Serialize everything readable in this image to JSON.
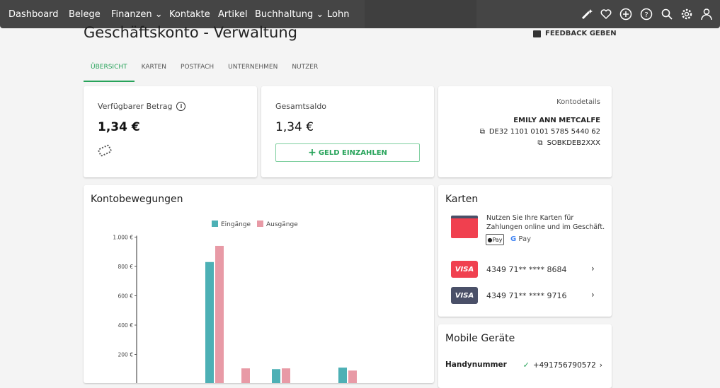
{
  "nav": {
    "items": [
      "Dashboard",
      "Belege",
      "Finanzen",
      "Kontakte",
      "Artikel",
      "Buchhaltung",
      "Lohn"
    ],
    "icons": [
      "magic-wand-icon",
      "heart-icon",
      "plus-circle-icon",
      "help-icon",
      "search-icon",
      "gear-icon",
      "user-icon"
    ]
  },
  "page": {
    "title": "Geschäftskonto - Verwaltung",
    "feedback": "FEEDBACK GEBEN"
  },
  "tabs": [
    "ÜBERSICHT",
    "KARTEN",
    "POSTFACH",
    "UNTERNEHMEN",
    "NUTZER"
  ],
  "available": {
    "label": "Verfügbarer Betrag",
    "amount": "1,34 €"
  },
  "balance": {
    "label": "Gesamtsaldo",
    "amount": "1,34 €",
    "button": "GELD EINZAHLEN"
  },
  "account": {
    "label": "Kontodetails",
    "name": "EMILY ANN METCALFE",
    "iban": "DE32 1101 0101 5785 5440 62",
    "bic": "SOBKDEB2XXX"
  },
  "movements": {
    "title": "Kontobewegungen"
  },
  "cards": {
    "title": "Karten",
    "promo": "Nutzen Sie Ihre Karten für Zahlungen online und im Geschäft.",
    "apple_pay": "Pay",
    "google_pay": "Pay",
    "list": [
      {
        "brand": "VISA",
        "number": "4349 71** **** 8684",
        "color": "#f0404f"
      },
      {
        "brand": "VISA",
        "number": "4349 71** **** 9716",
        "color": "#4a5068"
      }
    ]
  },
  "mobile": {
    "title": "Mobile Geräte",
    "phone_label": "Handynummer",
    "phone": "+491756790572"
  },
  "colors": {
    "accent": "#27a35a",
    "incoming": "#4db0b5",
    "outgoing": "#e89aa6"
  },
  "chart_data": {
    "type": "bar",
    "legend": "top",
    "yticks": [
      "1.000 €",
      "800 €",
      "600 €",
      "400 €",
      "200 €"
    ],
    "ytick_values": [
      1000,
      800,
      600,
      400,
      200
    ],
    "ylim": [
      0,
      1000
    ],
    "series": [
      {
        "name": "Eingänge",
        "values": [
          830,
          0,
          100,
          110
        ]
      },
      {
        "name": "Ausgänge",
        "values": [
          940,
          105,
          105,
          90
        ]
      }
    ]
  }
}
